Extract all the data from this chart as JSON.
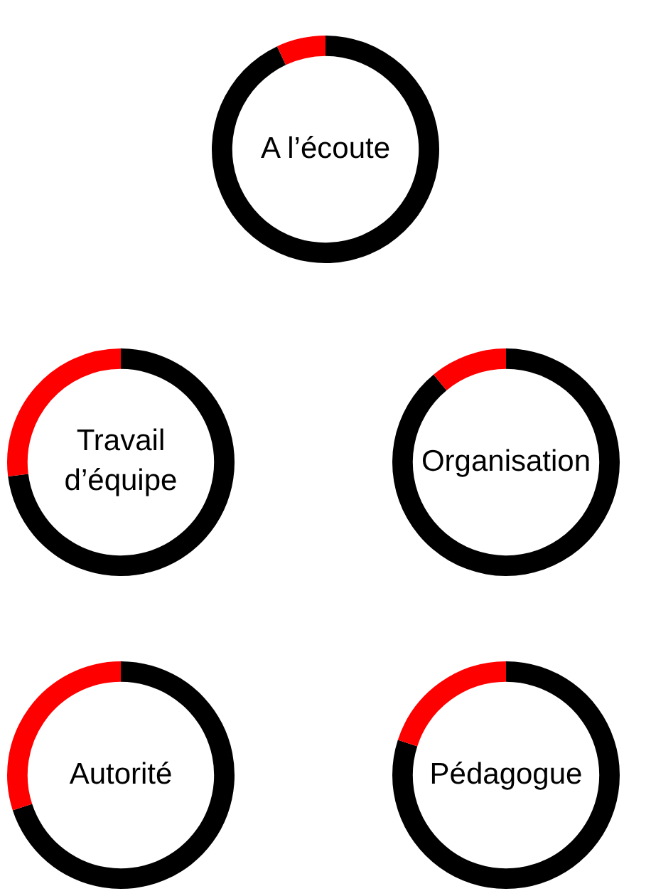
{
  "chart_data": [
    {
      "type": "donut",
      "title": "A l’écoute",
      "categories": [
        null,
        null
      ],
      "values": [
        93,
        7
      ],
      "colors": [
        "#000000",
        "#ff0000"
      ],
      "legend": false
    },
    {
      "type": "donut",
      "title": "Travail d’équipe",
      "categories": [
        null,
        null
      ],
      "values": [
        73,
        27
      ],
      "colors": [
        "#000000",
        "#ff0000"
      ],
      "legend": false
    },
    {
      "type": "donut",
      "title": "Organisation",
      "categories": [
        null,
        null
      ],
      "values": [
        89,
        11
      ],
      "colors": [
        "#000000",
        "#ff0000"
      ],
      "legend": false
    },
    {
      "type": "donut",
      "title": "Autorité",
      "categories": [
        null,
        null
      ],
      "values": [
        70,
        30
      ],
      "colors": [
        "#000000",
        "#ff0000"
      ],
      "legend": false
    },
    {
      "type": "donut",
      "title": "Pédagogue",
      "categories": [
        null,
        null
      ],
      "values": [
        80,
        20
      ],
      "colors": [
        "#000000",
        "#ff0000"
      ],
      "legend": false
    }
  ]
}
